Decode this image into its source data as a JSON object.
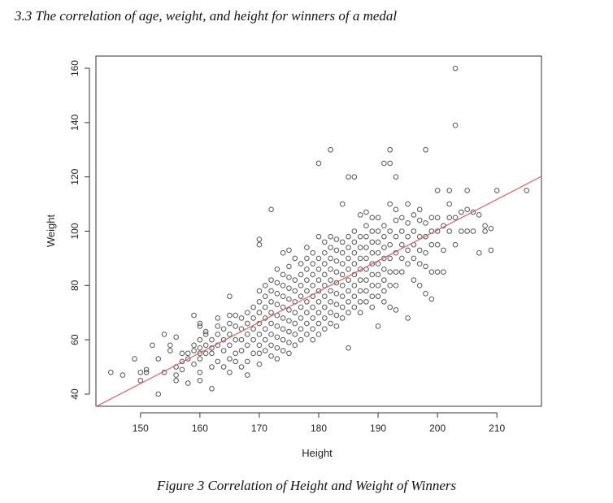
{
  "document": {
    "section_heading": "3.3 The correlation of age, weight, and height for winners of a medal",
    "figure_caption": "Figure 3 Correlation of Height and Weight of Winners"
  },
  "chart_data": {
    "type": "scatter",
    "xlabel": "Height",
    "ylabel": "Weight",
    "xlim": [
      142.5,
      217.5
    ],
    "ylim": [
      35.5,
      164.5
    ],
    "x_ticks": [
      150,
      160,
      170,
      180,
      190,
      200,
      210
    ],
    "y_ticks": [
      40,
      60,
      80,
      100,
      120,
      140,
      160
    ],
    "grid": false,
    "point_color": "#555555",
    "fit_line_color": "#e06060",
    "fit_line": {
      "x": [
        142.5,
        217.5
      ],
      "y": [
        35.4,
        120.2
      ]
    },
    "points": [
      [
        145,
        48
      ],
      [
        147,
        47
      ],
      [
        149,
        53
      ],
      [
        150,
        45
      ],
      [
        150,
        48
      ],
      [
        151,
        48
      ],
      [
        151,
        49
      ],
      [
        152,
        58
      ],
      [
        153,
        40
      ],
      [
        153,
        53
      ],
      [
        154,
        62
      ],
      [
        154,
        48
      ],
      [
        155,
        56
      ],
      [
        155,
        58
      ],
      [
        156,
        50
      ],
      [
        156,
        61
      ],
      [
        156,
        45
      ],
      [
        156,
        47
      ],
      [
        157,
        52
      ],
      [
        157,
        55
      ],
      [
        157,
        49
      ],
      [
        158,
        55
      ],
      [
        158,
        53
      ],
      [
        158,
        44
      ],
      [
        159,
        56
      ],
      [
        159,
        58
      ],
      [
        159,
        51
      ],
      [
        159,
        69
      ],
      [
        160,
        53
      ],
      [
        160,
        55
      ],
      [
        160,
        57
      ],
      [
        160,
        60
      ],
      [
        160,
        45
      ],
      [
        160,
        48
      ],
      [
        160,
        65
      ],
      [
        160,
        66
      ],
      [
        161,
        55
      ],
      [
        161,
        58
      ],
      [
        161,
        62
      ],
      [
        161,
        63
      ],
      [
        162,
        50
      ],
      [
        162,
        55
      ],
      [
        162,
        60
      ],
      [
        162,
        42
      ],
      [
        162,
        57
      ],
      [
        163,
        52
      ],
      [
        163,
        58
      ],
      [
        163,
        62
      ],
      [
        163,
        65
      ],
      [
        163,
        68
      ],
      [
        164,
        50
      ],
      [
        164,
        56
      ],
      [
        164,
        60
      ],
      [
        164,
        64
      ],
      [
        165,
        48
      ],
      [
        165,
        53
      ],
      [
        165,
        58
      ],
      [
        165,
        62
      ],
      [
        165,
        66
      ],
      [
        165,
        69
      ],
      [
        165,
        76
      ],
      [
        166,
        52
      ],
      [
        166,
        55
      ],
      [
        166,
        60
      ],
      [
        166,
        65
      ],
      [
        166,
        69
      ],
      [
        167,
        50
      ],
      [
        167,
        56
      ],
      [
        167,
        60
      ],
      [
        167,
        64
      ],
      [
        167,
        68
      ],
      [
        168,
        47
      ],
      [
        168,
        52
      ],
      [
        168,
        58
      ],
      [
        168,
        62
      ],
      [
        168,
        66
      ],
      [
        168,
        70
      ],
      [
        169,
        55
      ],
      [
        169,
        60
      ],
      [
        169,
        64
      ],
      [
        169,
        68
      ],
      [
        169,
        72
      ],
      [
        170,
        51
      ],
      [
        170,
        55
      ],
      [
        170,
        58
      ],
      [
        170,
        62
      ],
      [
        170,
        66
      ],
      [
        170,
        70
      ],
      [
        170,
        74
      ],
      [
        170,
        78
      ],
      [
        170,
        95
      ],
      [
        170,
        97
      ],
      [
        171,
        56
      ],
      [
        171,
        60
      ],
      [
        171,
        64
      ],
      [
        171,
        68
      ],
      [
        171,
        72
      ],
      [
        171,
        76
      ],
      [
        171,
        80
      ],
      [
        172,
        54
      ],
      [
        172,
        58
      ],
      [
        172,
        62
      ],
      [
        172,
        66
      ],
      [
        172,
        70
      ],
      [
        172,
        74
      ],
      [
        172,
        78
      ],
      [
        172,
        82
      ],
      [
        172,
        108
      ],
      [
        173,
        53
      ],
      [
        173,
        57
      ],
      [
        173,
        61
      ],
      [
        173,
        65
      ],
      [
        173,
        69
      ],
      [
        173,
        73
      ],
      [
        173,
        77
      ],
      [
        173,
        81
      ],
      [
        173,
        86
      ],
      [
        174,
        56
      ],
      [
        174,
        60
      ],
      [
        174,
        64
      ],
      [
        174,
        68
      ],
      [
        174,
        72
      ],
      [
        174,
        76
      ],
      [
        174,
        80
      ],
      [
        174,
        84
      ],
      [
        174,
        92
      ],
      [
        175,
        55
      ],
      [
        175,
        59
      ],
      [
        175,
        63
      ],
      [
        175,
        67
      ],
      [
        175,
        71
      ],
      [
        175,
        75
      ],
      [
        175,
        79
      ],
      [
        175,
        83
      ],
      [
        175,
        87
      ],
      [
        175,
        93
      ],
      [
        176,
        58
      ],
      [
        176,
        62
      ],
      [
        176,
        66
      ],
      [
        176,
        70
      ],
      [
        176,
        74
      ],
      [
        176,
        78
      ],
      [
        176,
        82
      ],
      [
        176,
        90
      ],
      [
        177,
        60
      ],
      [
        177,
        64
      ],
      [
        177,
        68
      ],
      [
        177,
        72
      ],
      [
        177,
        76
      ],
      [
        177,
        80
      ],
      [
        177,
        84
      ],
      [
        177,
        88
      ],
      [
        178,
        62
      ],
      [
        178,
        66
      ],
      [
        178,
        70
      ],
      [
        178,
        74
      ],
      [
        178,
        78
      ],
      [
        178,
        82
      ],
      [
        178,
        86
      ],
      [
        178,
        90
      ],
      [
        178,
        94
      ],
      [
        179,
        60
      ],
      [
        179,
        64
      ],
      [
        179,
        68
      ],
      [
        179,
        72
      ],
      [
        179,
        76
      ],
      [
        179,
        80
      ],
      [
        179,
        84
      ],
      [
        179,
        88
      ],
      [
        179,
        92
      ],
      [
        180,
        62
      ],
      [
        180,
        66
      ],
      [
        180,
        70
      ],
      [
        180,
        74
      ],
      [
        180,
        78
      ],
      [
        180,
        82
      ],
      [
        180,
        86
      ],
      [
        180,
        90
      ],
      [
        180,
        98
      ],
      [
        180,
        125
      ],
      [
        181,
        64
      ],
      [
        181,
        68
      ],
      [
        181,
        72
      ],
      [
        181,
        76
      ],
      [
        181,
        80
      ],
      [
        181,
        84
      ],
      [
        181,
        88
      ],
      [
        181,
        92
      ],
      [
        181,
        96
      ],
      [
        182,
        66
      ],
      [
        182,
        70
      ],
      [
        182,
        74
      ],
      [
        182,
        78
      ],
      [
        182,
        82
      ],
      [
        182,
        86
      ],
      [
        182,
        90
      ],
      [
        182,
        94
      ],
      [
        182,
        98
      ],
      [
        182,
        130
      ],
      [
        183,
        65
      ],
      [
        183,
        69
      ],
      [
        183,
        73
      ],
      [
        183,
        77
      ],
      [
        183,
        81
      ],
      [
        183,
        85
      ],
      [
        183,
        89
      ],
      [
        183,
        93
      ],
      [
        183,
        97
      ],
      [
        184,
        68
      ],
      [
        184,
        72
      ],
      [
        184,
        76
      ],
      [
        184,
        80
      ],
      [
        184,
        84
      ],
      [
        184,
        88
      ],
      [
        184,
        92
      ],
      [
        184,
        96
      ],
      [
        184,
        110
      ],
      [
        185,
        57
      ],
      [
        185,
        70
      ],
      [
        185,
        74
      ],
      [
        185,
        78
      ],
      [
        185,
        82
      ],
      [
        185,
        86
      ],
      [
        185,
        90
      ],
      [
        185,
        94
      ],
      [
        185,
        98
      ],
      [
        185,
        120
      ],
      [
        186,
        72
      ],
      [
        186,
        76
      ],
      [
        186,
        80
      ],
      [
        186,
        84
      ],
      [
        186,
        88
      ],
      [
        186,
        92
      ],
      [
        186,
        96
      ],
      [
        186,
        100
      ],
      [
        186,
        120
      ],
      [
        187,
        70
      ],
      [
        187,
        74
      ],
      [
        187,
        78
      ],
      [
        187,
        82
      ],
      [
        187,
        86
      ],
      [
        187,
        90
      ],
      [
        187,
        94
      ],
      [
        187,
        98
      ],
      [
        187,
        106
      ],
      [
        188,
        74
      ],
      [
        188,
        78
      ],
      [
        188,
        82
      ],
      [
        188,
        86
      ],
      [
        188,
        90
      ],
      [
        188,
        94
      ],
      [
        188,
        98
      ],
      [
        188,
        102
      ],
      [
        188,
        107
      ],
      [
        189,
        72
      ],
      [
        189,
        76
      ],
      [
        189,
        80
      ],
      [
        189,
        84
      ],
      [
        189,
        88
      ],
      [
        189,
        92
      ],
      [
        189,
        96
      ],
      [
        189,
        100
      ],
      [
        189,
        105
      ],
      [
        190,
        65
      ],
      [
        190,
        76
      ],
      [
        190,
        80
      ],
      [
        190,
        84
      ],
      [
        190,
        88
      ],
      [
        190,
        92
      ],
      [
        190,
        96
      ],
      [
        190,
        100
      ],
      [
        190,
        105
      ],
      [
        191,
        74
      ],
      [
        191,
        78
      ],
      [
        191,
        82
      ],
      [
        191,
        86
      ],
      [
        191,
        90
      ],
      [
        191,
        94
      ],
      [
        191,
        98
      ],
      [
        191,
        102
      ],
      [
        191,
        125
      ],
      [
        192,
        72
      ],
      [
        192,
        80
      ],
      [
        192,
        85
      ],
      [
        192,
        90
      ],
      [
        192,
        95
      ],
      [
        192,
        100
      ],
      [
        192,
        110
      ],
      [
        192,
        130
      ],
      [
        192,
        125
      ],
      [
        193,
        71
      ],
      [
        193,
        80
      ],
      [
        193,
        85
      ],
      [
        193,
        92
      ],
      [
        193,
        98
      ],
      [
        193,
        104
      ],
      [
        193,
        108
      ],
      [
        193,
        120
      ],
      [
        194,
        85
      ],
      [
        194,
        90
      ],
      [
        194,
        95
      ],
      [
        194,
        100
      ],
      [
        194,
        105
      ],
      [
        195,
        68
      ],
      [
        195,
        88
      ],
      [
        195,
        93
      ],
      [
        195,
        98
      ],
      [
        195,
        103
      ],
      [
        195,
        110
      ],
      [
        196,
        82
      ],
      [
        196,
        90
      ],
      [
        196,
        95
      ],
      [
        196,
        100
      ],
      [
        196,
        106
      ],
      [
        197,
        80
      ],
      [
        197,
        88
      ],
      [
        197,
        93
      ],
      [
        197,
        98
      ],
      [
        197,
        104
      ],
      [
        197,
        108
      ],
      [
        198,
        77
      ],
      [
        198,
        87
      ],
      [
        198,
        92
      ],
      [
        198,
        98
      ],
      [
        198,
        103
      ],
      [
        198,
        130
      ],
      [
        199,
        75
      ],
      [
        199,
        85
      ],
      [
        199,
        95
      ],
      [
        199,
        100
      ],
      [
        199,
        105
      ],
      [
        200,
        85
      ],
      [
        200,
        95
      ],
      [
        200,
        100
      ],
      [
        200,
        105
      ],
      [
        200,
        115
      ],
      [
        201,
        85
      ],
      [
        201,
        93
      ],
      [
        201,
        102
      ],
      [
        202,
        100
      ],
      [
        202,
        105
      ],
      [
        202,
        110
      ],
      [
        202,
        115
      ],
      [
        203,
        95
      ],
      [
        203,
        105
      ],
      [
        203,
        139
      ],
      [
        203,
        160
      ],
      [
        204,
        100
      ],
      [
        204,
        107
      ],
      [
        205,
        100
      ],
      [
        205,
        108
      ],
      [
        205,
        115
      ],
      [
        206,
        100
      ],
      [
        206,
        107
      ],
      [
        207,
        92
      ],
      [
        207,
        106
      ],
      [
        208,
        100
      ],
      [
        208,
        102
      ],
      [
        209,
        93
      ],
      [
        209,
        101
      ],
      [
        210,
        115
      ],
      [
        215,
        115
      ]
    ]
  }
}
